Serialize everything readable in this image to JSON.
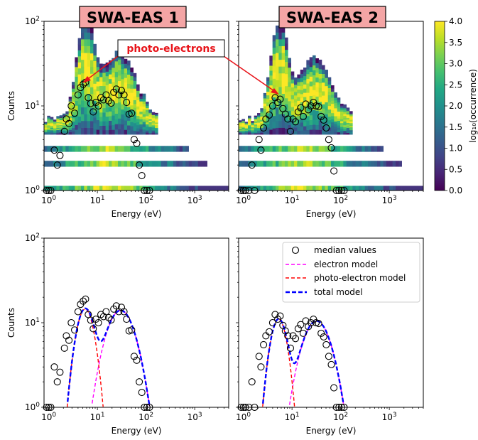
{
  "colorbar": {
    "label": "log₁₀(occurrence)",
    "range": [
      0.0,
      4.0
    ],
    "ticks": [
      "0.0",
      "0.5",
      "1.0",
      "1.5",
      "2.0",
      "2.5",
      "3.0",
      "3.5",
      "4.0"
    ],
    "colormap": "viridis",
    "colors": [
      "#440154",
      "#482475",
      "#414487",
      "#355f8d",
      "#2a788e",
      "#21918c",
      "#22a884",
      "#44bf70",
      "#7ad151",
      "#bddf26",
      "#fde725"
    ]
  },
  "annotation": {
    "text": "photo-electrons",
    "color": "#e8141a"
  },
  "legend": {
    "placement": "upper right of bottom-right panel",
    "items": [
      {
        "label": "median values",
        "style": "circle",
        "color": "#000000"
      },
      {
        "label": "electron model",
        "style": "dashed",
        "color": "#ff00ff"
      },
      {
        "label": "photo-electron model",
        "style": "dashed",
        "color": "#ff0000"
      },
      {
        "label": "total model",
        "style": "dashed",
        "color": "#0000ff"
      }
    ]
  },
  "chart_data": [
    {
      "type": "heatmap",
      "title": "SWA-EAS 1",
      "title_bg": "#f4a5a5",
      "xlabel": "Energy (eV)",
      "ylabel": "Counts",
      "xscale": "log",
      "yscale": "log",
      "xlim": [
        0.8,
        5000
      ],
      "ylim": [
        1,
        100
      ],
      "xticks": [
        {
          "value": 1,
          "base": "10",
          "exp": "0"
        },
        {
          "value": 10,
          "base": "10",
          "exp": "1"
        },
        {
          "value": 100,
          "base": "10",
          "exp": "2"
        },
        {
          "value": 1000,
          "base": "10",
          "exp": "3"
        }
      ],
      "yticks": [
        {
          "value": 1,
          "base": "10",
          "exp": "0"
        },
        {
          "value": 10,
          "base": "10",
          "exp": "1"
        },
        {
          "value": 100,
          "base": "10",
          "exp": "2"
        }
      ],
      "median_values": {
        "x": [
          0.9,
          1.0,
          1.1,
          1.3,
          1.5,
          1.7,
          2.1,
          2.3,
          2.6,
          2.9,
          3.4,
          4.0,
          4.5,
          5.1,
          5.7,
          6.5,
          7.3,
          8.2,
          9.3,
          10.5,
          11.8,
          13.4,
          15.1,
          17.0,
          19.2,
          21.7,
          24.5,
          27.6,
          31.2,
          35.2,
          39.7,
          44.8,
          50.5,
          57.0,
          64.3,
          72.6,
          81.9,
          92.4,
          104.3,
          117.6
        ],
        "y": [
          1.0,
          1.0,
          1.0,
          3.0,
          2.0,
          2.6,
          5.0,
          7.0,
          6.2,
          10.0,
          8.2,
          13.5,
          16.5,
          18.0,
          19.0,
          12.5,
          10.7,
          8.5,
          11.0,
          10.0,
          12.5,
          11.8,
          13.5,
          11.5,
          10.8,
          14.5,
          15.8,
          13.5,
          15.2,
          13.5,
          11.0,
          8.0,
          8.2,
          4.0,
          3.6,
          2.0,
          1.5,
          1.0,
          1.0,
          1.0
        ]
      }
    },
    {
      "type": "heatmap",
      "title": "SWA-EAS 2",
      "title_bg": "#f4a5a5",
      "xlabel": "Energy (eV)",
      "ylabel": "",
      "xscale": "log",
      "yscale": "log",
      "xlim": [
        0.8,
        5000
      ],
      "ylim": [
        1,
        100
      ],
      "xticks": [
        {
          "value": 1,
          "base": "10",
          "exp": "0"
        },
        {
          "value": 10,
          "base": "10",
          "exp": "1"
        },
        {
          "value": 100,
          "base": "10",
          "exp": "2"
        },
        {
          "value": 1000,
          "base": "10",
          "exp": "3"
        }
      ],
      "yticks": [],
      "median_values": {
        "x": [
          0.9,
          1.0,
          1.1,
          1.3,
          1.5,
          1.7,
          2.1,
          2.3,
          2.6,
          2.9,
          3.4,
          4.0,
          4.5,
          5.1,
          5.7,
          6.5,
          7.3,
          8.2,
          9.3,
          10.5,
          11.8,
          13.4,
          15.1,
          17.0,
          19.2,
          21.7,
          24.5,
          27.6,
          31.2,
          35.2,
          39.7,
          44.8,
          50.5,
          57.0,
          64.3,
          72.6,
          81.9,
          92.4,
          104.3,
          117.6
        ],
        "y": [
          1.0,
          1.0,
          1.0,
          1.0,
          2.0,
          1.0,
          4.0,
          3.0,
          5.5,
          7.0,
          7.8,
          10.0,
          12.5,
          11.0,
          12.0,
          9.3,
          8.0,
          7.0,
          5.0,
          7.0,
          6.5,
          8.5,
          9.5,
          7.5,
          10.5,
          9.0,
          10.0,
          11.0,
          10.0,
          9.8,
          7.5,
          6.8,
          5.5,
          4.0,
          3.2,
          1.7,
          1.0,
          1.0,
          1.0,
          1.0
        ]
      }
    },
    {
      "type": "line",
      "title": "",
      "xlabel": "Energy (eV)",
      "ylabel": "Counts",
      "xscale": "log",
      "yscale": "log",
      "xlim": [
        0.8,
        5000
      ],
      "ylim": [
        1,
        100
      ],
      "xticks": [
        {
          "value": 1,
          "base": "10",
          "exp": "0"
        },
        {
          "value": 10,
          "base": "10",
          "exp": "1"
        },
        {
          "value": 100,
          "base": "10",
          "exp": "2"
        },
        {
          "value": 1000,
          "base": "10",
          "exp": "3"
        }
      ],
      "yticks": [
        {
          "value": 1,
          "base": "10",
          "exp": "0"
        },
        {
          "value": 10,
          "base": "10",
          "exp": "1"
        },
        {
          "value": 100,
          "base": "10",
          "exp": "2"
        }
      ],
      "median_values": {
        "x": [
          0.9,
          1.0,
          1.1,
          1.3,
          1.5,
          1.7,
          2.1,
          2.3,
          2.6,
          2.9,
          3.4,
          4.0,
          4.5,
          5.1,
          5.7,
          6.5,
          7.3,
          8.2,
          9.3,
          10.5,
          11.8,
          13.4,
          15.1,
          17.0,
          19.2,
          21.7,
          24.5,
          27.6,
          31.2,
          35.2,
          39.7,
          44.8,
          50.5,
          57.0,
          64.3,
          72.6,
          81.9,
          92.4,
          104.3,
          117.6
        ],
        "y": [
          1.0,
          1.0,
          1.0,
          3.0,
          2.0,
          2.6,
          5.0,
          7.0,
          6.2,
          10.0,
          8.2,
          13.5,
          16.5,
          18.0,
          19.0,
          12.5,
          10.7,
          8.5,
          11.0,
          10.0,
          12.5,
          11.8,
          13.5,
          11.5,
          10.8,
          14.5,
          15.8,
          13.5,
          15.2,
          13.5,
          11.0,
          8.0,
          8.2,
          4.0,
          3.6,
          2.0,
          1.5,
          1.0,
          1.0,
          1.0
        ]
      },
      "photo_model": {
        "peak": 14.5,
        "center": 5.6,
        "width": 0.16
      },
      "electron_model": {
        "peak": 14.0,
        "center": 30.0,
        "width": 0.26
      },
      "series": [
        {
          "name": "median values",
          "type": "scatter"
        },
        {
          "name": "electron model",
          "type": "line"
        },
        {
          "name": "photo-electron model",
          "type": "line"
        },
        {
          "name": "total model",
          "type": "line"
        }
      ]
    },
    {
      "type": "line",
      "title": "",
      "xlabel": "Energy (eV)",
      "ylabel": "",
      "xscale": "log",
      "yscale": "log",
      "xlim": [
        0.8,
        5000
      ],
      "ylim": [
        1,
        100
      ],
      "xticks": [
        {
          "value": 1,
          "base": "10",
          "exp": "0"
        },
        {
          "value": 10,
          "base": "10",
          "exp": "1"
        },
        {
          "value": 100,
          "base": "10",
          "exp": "2"
        },
        {
          "value": 1000,
          "base": "10",
          "exp": "3"
        }
      ],
      "yticks": [],
      "median_values": {
        "x": [
          0.9,
          1.0,
          1.1,
          1.3,
          1.5,
          1.7,
          2.1,
          2.3,
          2.6,
          2.9,
          3.4,
          4.0,
          4.5,
          5.1,
          5.7,
          6.5,
          7.3,
          8.2,
          9.3,
          10.5,
          11.8,
          13.4,
          15.1,
          17.0,
          19.2,
          21.7,
          24.5,
          27.6,
          31.2,
          35.2,
          39.7,
          44.8,
          50.5,
          57.0,
          64.3,
          72.6,
          81.9,
          92.4,
          104.3,
          117.6
        ],
        "y": [
          1.0,
          1.0,
          1.0,
          1.0,
          2.0,
          1.0,
          4.0,
          3.0,
          5.5,
          7.0,
          7.8,
          10.0,
          12.5,
          11.0,
          12.0,
          9.3,
          8.0,
          7.0,
          5.0,
          7.0,
          6.5,
          8.5,
          9.5,
          7.5,
          10.5,
          9.0,
          10.0,
          11.0,
          10.0,
          9.8,
          7.5,
          6.8,
          5.5,
          4.0,
          3.2,
          1.7,
          1.0,
          1.0,
          1.0,
          1.0
        ]
      },
      "photo_model": {
        "peak": 11.0,
        "center": 5.3,
        "width": 0.15
      },
      "electron_model": {
        "peak": 10.5,
        "center": 32.0,
        "width": 0.26
      },
      "series": [
        {
          "name": "median values",
          "type": "scatter"
        },
        {
          "name": "electron model",
          "type": "line"
        },
        {
          "name": "photo-electron model",
          "type": "line"
        },
        {
          "name": "total model",
          "type": "line"
        }
      ]
    }
  ]
}
